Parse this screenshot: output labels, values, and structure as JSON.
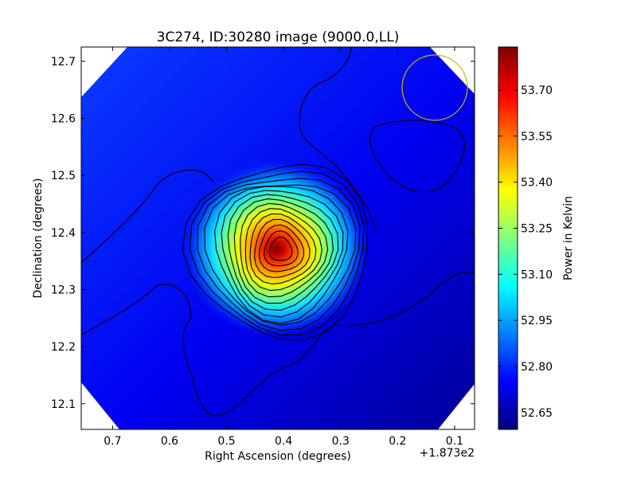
{
  "chart_data": {
    "type": "heatmap",
    "title": "3C274, ID:30280 image (9000.0,LL)",
    "xlabel": "Right Ascension (degrees)",
    "ylabel": "Declination (degrees)",
    "x_offset_label": "+1.873e2",
    "x_offset_value": 187.3,
    "xlim": [
      0.755,
      0.065
    ],
    "ylim": [
      12.055,
      12.725
    ],
    "x_ticks": [
      0.7,
      0.6,
      0.5,
      0.4,
      0.3,
      0.2,
      0.1
    ],
    "x_tick_labels": [
      "0.7",
      "0.6",
      "0.5",
      "0.4",
      "0.3",
      "0.2",
      "0.1"
    ],
    "y_ticks": [
      12.1,
      12.2,
      12.3,
      12.4,
      12.5,
      12.6,
      12.7
    ],
    "y_tick_labels": [
      "12.1",
      "12.2",
      "12.3",
      "12.4",
      "12.5",
      "12.6",
      "12.7"
    ],
    "colorbar": {
      "label": "Power in Kelvin",
      "colormap": "jet",
      "range": [
        52.595,
        53.84
      ],
      "ticks": [
        52.65,
        52.8,
        52.95,
        53.1,
        53.25,
        53.4,
        53.55,
        53.7
      ],
      "tick_labels": [
        "52.65",
        "52.80",
        "52.95",
        "53.10",
        "53.25",
        "53.40",
        "53.55",
        "53.70"
      ]
    },
    "peak": {
      "ra_offset": 0.405,
      "dec": 12.37,
      "value": 53.84
    },
    "beam_circle": {
      "ra_offset": 0.13,
      "dec": 12.655,
      "color": "#c8b400"
    },
    "contour_color": "#000000"
  }
}
